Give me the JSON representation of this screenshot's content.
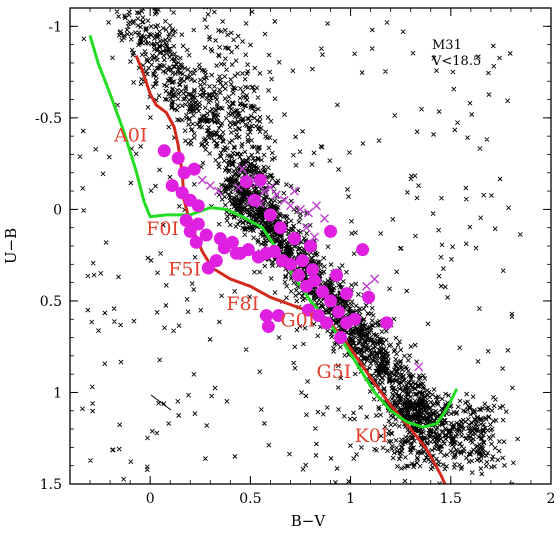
{
  "chart_data": {
    "type": "scatter",
    "title": "",
    "xlabel": "B−V",
    "ylabel": "U−B",
    "xlim": [
      -0.4,
      2.0
    ],
    "ylim": [
      1.5,
      -1.1
    ],
    "y_inverted": true,
    "x_ticks": [
      {
        "value": 0,
        "label": "0"
      },
      {
        "value": 0.5,
        "label": "0.5"
      },
      {
        "value": 1,
        "label": "1"
      },
      {
        "value": 1.5,
        "label": "1.5"
      },
      {
        "value": 2,
        "label": "2"
      }
    ],
    "y_ticks": [
      {
        "value": -1,
        "label": "-1"
      },
      {
        "value": -0.5,
        "label": "-0.5"
      },
      {
        "value": 0,
        "label": "0"
      },
      {
        "value": 0.5,
        "label": "0.5"
      },
      {
        "value": 1,
        "label": "1"
      },
      {
        "value": 1.5,
        "label": "1.5"
      }
    ],
    "annotation": {
      "line1": "M31",
      "line2": "V<18.5"
    },
    "colors": {
      "field_stars": "#000000",
      "supergiant_circles": "#e020e0",
      "supergiant_crosses": "#c040d0",
      "red_sequence": "#d42a1e",
      "green_sequence": "#22dd22",
      "label_color": "#e0402e"
    },
    "spectral_labels": [
      {
        "text": "A0I",
        "x": -0.18,
        "y": -0.37
      },
      {
        "text": "F0I",
        "x": -0.02,
        "y": 0.14
      },
      {
        "text": "F5I",
        "x": 0.09,
        "y": 0.36
      },
      {
        "text": "F8I",
        "x": 0.38,
        "y": 0.55
      },
      {
        "text": "G0I",
        "x": 0.65,
        "y": 0.64
      },
      {
        "text": "G5I",
        "x": 0.83,
        "y": 0.92
      },
      {
        "text": "K0I",
        "x": 1.02,
        "y": 1.27
      }
    ],
    "series": [
      {
        "name": "",
        "kind": "line",
        "color_key": "red_sequence",
        "points": [
          [
            -0.07,
            -0.84
          ],
          [
            -0.04,
            -0.76
          ],
          [
            0.0,
            -0.63
          ],
          [
            0.03,
            -0.57
          ],
          [
            0.08,
            -0.53
          ],
          [
            0.12,
            -0.45
          ],
          [
            0.14,
            -0.35
          ],
          [
            0.16,
            -0.2
          ],
          [
            0.17,
            -0.05
          ],
          [
            0.2,
            0.08
          ],
          [
            0.26,
            0.23
          ],
          [
            0.31,
            0.32
          ],
          [
            0.4,
            0.38
          ],
          [
            0.5,
            0.42
          ],
          [
            0.6,
            0.48
          ],
          [
            0.7,
            0.52
          ],
          [
            0.8,
            0.56
          ],
          [
            0.9,
            0.62
          ],
          [
            1.0,
            0.76
          ],
          [
            1.1,
            0.92
          ],
          [
            1.2,
            1.07
          ],
          [
            1.3,
            1.2
          ],
          [
            1.38,
            1.31
          ],
          [
            1.45,
            1.45
          ],
          [
            1.5,
            1.57
          ]
        ]
      },
      {
        "name": "",
        "kind": "line",
        "color_key": "green_sequence",
        "points": [
          [
            -0.3,
            -0.95
          ],
          [
            -0.26,
            -0.8
          ],
          [
            -0.2,
            -0.63
          ],
          [
            -0.13,
            -0.42
          ],
          [
            -0.07,
            -0.21
          ],
          [
            -0.03,
            -0.04
          ],
          [
            0.0,
            0.04
          ],
          [
            0.08,
            0.03
          ],
          [
            0.2,
            0.03
          ],
          [
            0.3,
            -0.01
          ],
          [
            0.38,
            0.0
          ],
          [
            0.46,
            0.04
          ],
          [
            0.56,
            0.1
          ],
          [
            0.64,
            0.23
          ],
          [
            0.72,
            0.37
          ],
          [
            0.8,
            0.5
          ],
          [
            0.88,
            0.6
          ],
          [
            0.96,
            0.72
          ],
          [
            1.04,
            0.86
          ],
          [
            1.12,
            1.0
          ],
          [
            1.2,
            1.1
          ],
          [
            1.28,
            1.16
          ],
          [
            1.36,
            1.19
          ],
          [
            1.43,
            1.17
          ],
          [
            1.48,
            1.09
          ],
          [
            1.53,
            0.98
          ]
        ]
      },
      {
        "name": "",
        "kind": "scatter",
        "marker": "circle",
        "color_key": "supergiant_circles",
        "points": [
          [
            0.07,
            -0.32
          ],
          [
            0.14,
            -0.28
          ],
          [
            0.17,
            -0.2
          ],
          [
            0.22,
            -0.22
          ],
          [
            0.11,
            -0.13
          ],
          [
            0.16,
            -0.09
          ],
          [
            0.2,
            -0.05
          ],
          [
            0.24,
            -0.02
          ],
          [
            0.18,
            0.06
          ],
          [
            0.24,
            0.08
          ],
          [
            0.2,
            0.12
          ],
          [
            0.28,
            0.14
          ],
          [
            0.23,
            0.18
          ],
          [
            0.35,
            0.16
          ],
          [
            0.37,
            0.21
          ],
          [
            0.41,
            0.18
          ],
          [
            0.45,
            0.24
          ],
          [
            0.49,
            0.22
          ],
          [
            0.54,
            0.26
          ],
          [
            0.58,
            0.24
          ],
          [
            0.62,
            0.23
          ],
          [
            0.66,
            0.28
          ],
          [
            0.7,
            0.3
          ],
          [
            0.74,
            0.36
          ],
          [
            0.78,
            0.42
          ],
          [
            0.82,
            0.39
          ],
          [
            0.86,
            0.45
          ],
          [
            0.9,
            0.5
          ],
          [
            0.94,
            0.56
          ],
          [
            0.98,
            0.62
          ],
          [
            1.02,
            0.6
          ],
          [
            0.95,
            0.7
          ],
          [
            0.88,
            0.62
          ],
          [
            0.84,
            0.58
          ],
          [
            0.79,
            0.55
          ],
          [
            0.58,
            0.58
          ],
          [
            0.59,
            0.64
          ],
          [
            0.64,
            0.58
          ],
          [
            1.09,
            0.48
          ],
          [
            1.18,
            0.62
          ],
          [
            1.06,
            0.22
          ],
          [
            0.8,
            0.2
          ],
          [
            0.72,
            0.16
          ],
          [
            0.65,
            0.1
          ],
          [
            0.6,
            0.03
          ],
          [
            0.52,
            -0.05
          ],
          [
            0.48,
            -0.15
          ],
          [
            0.55,
            -0.16
          ],
          [
            0.43,
            0.24
          ],
          [
            0.29,
            0.32
          ],
          [
            0.33,
            0.28
          ],
          [
            0.9,
            0.12
          ],
          [
            0.93,
            0.36
          ],
          [
            0.98,
            0.46
          ],
          [
            0.76,
            0.28
          ],
          [
            0.81,
            0.33
          ]
        ]
      },
      {
        "name": "",
        "kind": "scatter",
        "marker": "cross",
        "color_key": "supergiant_crosses",
        "points": [
          [
            0.46,
            -0.22
          ],
          [
            0.5,
            -0.17
          ],
          [
            0.53,
            -0.14
          ],
          [
            0.57,
            -0.1
          ],
          [
            0.6,
            -0.12
          ],
          [
            0.63,
            -0.08
          ],
          [
            0.67,
            -0.05
          ],
          [
            0.7,
            -0.02
          ],
          [
            0.72,
            -0.1
          ],
          [
            0.75,
            0.0
          ],
          [
            0.79,
            0.02
          ],
          [
            0.83,
            -0.02
          ],
          [
            0.87,
            0.05
          ],
          [
            0.55,
            -0.03
          ],
          [
            0.5,
            -0.05
          ],
          [
            0.44,
            -0.12
          ],
          [
            0.3,
            -0.13
          ],
          [
            0.34,
            -0.1
          ],
          [
            0.78,
            0.1
          ],
          [
            0.82,
            0.15
          ],
          [
            0.26,
            -0.16
          ],
          [
            1.34,
            0.86
          ],
          [
            1.08,
            0.42
          ],
          [
            1.12,
            0.38
          ]
        ]
      }
    ]
  }
}
